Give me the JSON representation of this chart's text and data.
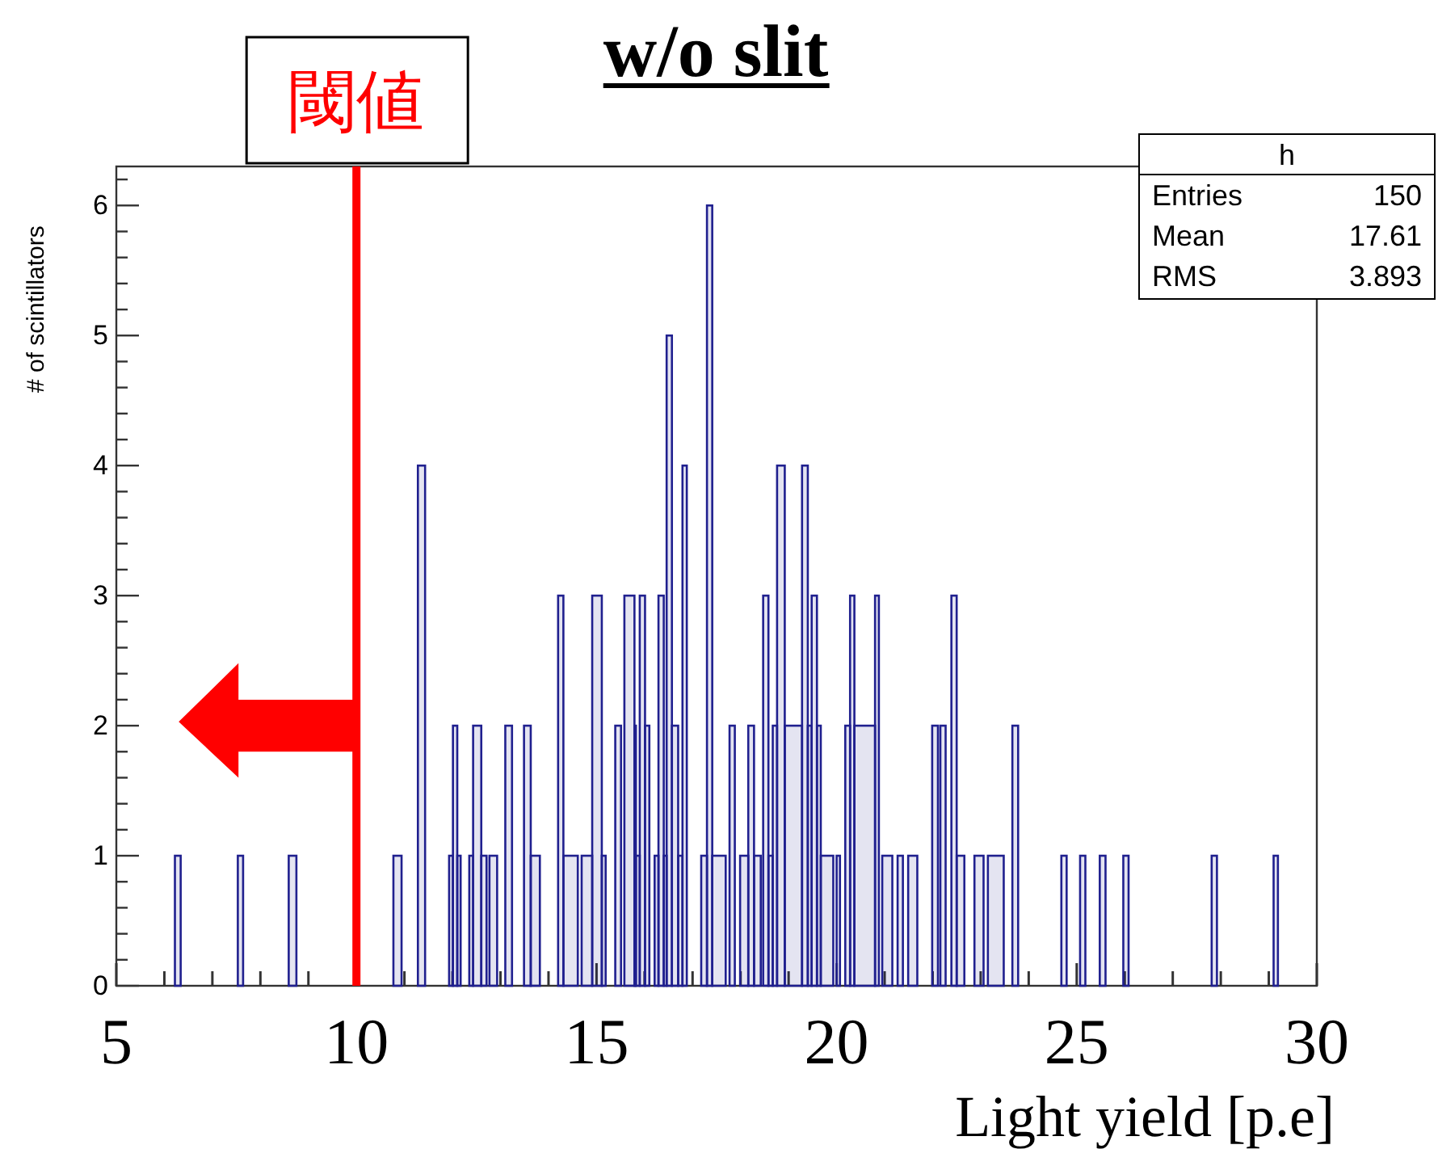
{
  "chart_data": {
    "type": "histogram",
    "title": "w/o slit",
    "xlabel": "Light yield [p.e]",
    "ylabel": "# of scintillators",
    "color": "#20208f",
    "bins": [
      6.22,
      6.34,
      7.53,
      7.64,
      8.59,
      8.75,
      10.77,
      10.94,
      11.28,
      11.43,
      11.93,
      12.01,
      12.1,
      12.17,
      12.35,
      12.43,
      12.6,
      12.71,
      12.77,
      12.93,
      13.1,
      13.24,
      13.49,
      13.63,
      13.82,
      14.2,
      14.31,
      14.61,
      14.69,
      14.91,
      15.11,
      15.19,
      15.39,
      15.51,
      15.58,
      15.79,
      15.82,
      15.9,
      16.01,
      16.1,
      16.21,
      16.29,
      16.4,
      16.46,
      16.57,
      16.7,
      16.79,
      16.88,
      17.18,
      17.3,
      17.41,
      17.69,
      17.77,
      17.88,
      17.99,
      18.16,
      18.28,
      18.42,
      18.47,
      18.58,
      18.67,
      18.76,
      18.92,
      19.28,
      19.4,
      19.48,
      19.59,
      19.67,
      19.93,
      20.0,
      20.07,
      20.18,
      20.28,
      20.37,
      20.8,
      20.88,
      20.95,
      21.16,
      21.27,
      21.38,
      21.49,
      21.68,
      21.99,
      22.11,
      22.16,
      22.27,
      22.39,
      22.5,
      22.66,
      22.87,
      23.06,
      23.15,
      23.48,
      23.66,
      23.78,
      24.68,
      24.79,
      25.07,
      25.18,
      25.48,
      25.6,
      25.97,
      26.08,
      27.81,
      27.92,
      29.1,
      29.19
    ],
    "values": [
      1,
      0,
      1,
      0,
      1,
      0,
      1,
      0,
      4,
      0,
      1,
      2,
      1,
      0,
      1,
      2,
      1,
      0,
      1,
      0,
      2,
      0,
      2,
      1,
      0,
      3,
      1,
      0,
      1,
      3,
      1,
      0,
      2,
      0,
      3,
      2,
      1,
      3,
      2,
      0,
      1,
      3,
      1,
      5,
      2,
      1,
      4,
      0,
      1,
      6,
      1,
      0,
      2,
      0,
      1,
      2,
      1,
      0,
      3,
      1,
      2,
      4,
      2,
      4,
      2,
      3,
      2,
      1,
      0,
      1,
      0,
      2,
      3,
      2,
      3,
      0,
      1,
      0,
      1,
      0,
      1,
      0,
      2,
      0,
      2,
      0,
      3,
      1,
      0,
      1,
      0,
      1,
      0,
      2,
      0,
      1,
      0,
      1,
      0,
      1,
      0,
      1,
      0,
      1,
      0,
      1
    ],
    "xlim": [
      5,
      30
    ],
    "ylim": [
      0,
      6.3
    ],
    "xticks": [
      5,
      {
        "value": 6,
        "label": null
      },
      {
        "value": 7,
        "label": null
      },
      {
        "value": 8,
        "label": null
      },
      {
        "value": 9,
        "label": null
      },
      10,
      {
        "value": 11,
        "label": null
      },
      {
        "value": 12,
        "label": null
      },
      {
        "value": 13,
        "label": null
      },
      {
        "value": 14,
        "label": null
      },
      15,
      {
        "value": 16,
        "label": null
      },
      {
        "value": 17,
        "label": null
      },
      {
        "value": 18,
        "label": null
      },
      {
        "value": 19,
        "label": null
      },
      20,
      {
        "value": 21,
        "label": null
      },
      {
        "value": 22,
        "label": null
      },
      {
        "value": 23,
        "label": null
      },
      {
        "value": 24,
        "label": null
      },
      25,
      {
        "value": 26,
        "label": null
      },
      {
        "value": 27,
        "label": null
      },
      {
        "value": 28,
        "label": null
      },
      {
        "value": 29,
        "label": null
      },
      30
    ],
    "yticks": [
      0,
      {
        "value": 0.2,
        "label": null
      },
      {
        "value": 0.4,
        "label": null
      },
      {
        "value": 0.6,
        "label": null
      },
      {
        "value": 0.8,
        "label": null
      },
      1,
      {
        "value": 1.2,
        "label": null
      },
      {
        "value": 1.4,
        "label": null
      },
      {
        "value": 1.6,
        "label": null
      },
      {
        "value": 1.8,
        "label": null
      },
      2,
      {
        "value": 2.2,
        "label": null
      },
      {
        "value": 2.4,
        "label": null
      },
      {
        "value": 2.6,
        "label": null
      },
      {
        "value": 2.8,
        "label": null
      },
      3,
      {
        "value": 3.2,
        "label": null
      },
      {
        "value": 3.4,
        "label": null
      },
      {
        "value": 3.6,
        "label": null
      },
      {
        "value": 3.8,
        "label": null
      },
      4,
      {
        "value": 4.2,
        "label": null
      },
      {
        "value": 4.4,
        "label": null
      },
      {
        "value": 4.6,
        "label": null
      },
      {
        "value": 4.8,
        "label": null
      },
      5,
      {
        "value": 5.2,
        "label": null
      },
      {
        "value": 5.4,
        "label": null
      },
      {
        "value": 5.6,
        "label": null
      },
      {
        "value": 5.8,
        "label": null
      },
      6,
      {
        "value": 6.2,
        "label": null
      }
    ],
    "ref_lines": [
      {
        "axis": "x",
        "value": 10,
        "label": "閾値",
        "color": "#ff0000"
      }
    ],
    "annotations": [
      "h",
      "Entries",
      "150",
      "Mean",
      "17.61",
      "RMS",
      "3.893"
    ]
  }
}
